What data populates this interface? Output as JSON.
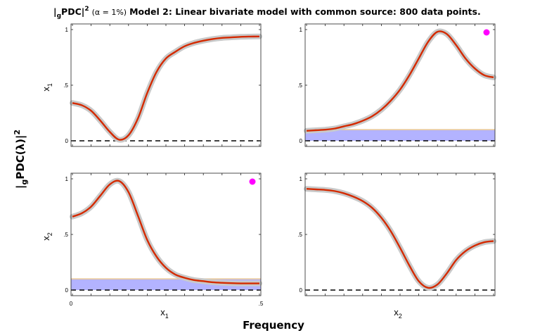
{
  "figure": {
    "title": {
      "prefix": "|",
      "sub": "g",
      "main": "PDC|",
      "sup": "2",
      "alpha": "(α = 1%)",
      "rest": "Model 2: Linear bivariate model with common source: 800 data points."
    },
    "ylabel": {
      "prefix": "|",
      "sub": "g",
      "main": "PDC(λ)|",
      "sup": "2"
    },
    "xlabel": "Frequency",
    "row_labels": [
      {
        "main": "x",
        "sub": "1"
      },
      {
        "main": "x",
        "sub": "2"
      }
    ],
    "col_labels": [
      {
        "main": "x",
        "sub": "1"
      },
      {
        "main": "x",
        "sub": "2"
      }
    ],
    "ytick_labels": [
      "0",
      ".5",
      "1"
    ],
    "xtick_labels": [
      "0",
      ".5"
    ]
  },
  "colors": {
    "estimate": "#d42a00",
    "confidence": "#c9c9c9",
    "threshold_fill": "#b3b3ff",
    "threshold_edge": "#e8c89a",
    "zero_line": "#000000",
    "significance_marker": "#ff00ff"
  },
  "chart_data": [
    {
      "type": "line",
      "row": 1,
      "col": 1,
      "xlim": [
        0,
        0.5
      ],
      "ylim": [
        0,
        1
      ],
      "x": [
        0,
        0.025,
        0.05,
        0.075,
        0.1,
        0.125,
        0.15,
        0.175,
        0.2,
        0.225,
        0.25,
        0.275,
        0.3,
        0.325,
        0.35,
        0.375,
        0.4,
        0.425,
        0.45,
        0.475,
        0.5
      ],
      "series": [
        {
          "values": [
            0.34,
            0.32,
            0.27,
            0.18,
            0.08,
            0.01,
            0.05,
            0.2,
            0.43,
            0.62,
            0.74,
            0.8,
            0.85,
            0.88,
            0.9,
            0.915,
            0.925,
            0.93,
            0.935,
            0.937,
            0.938
          ]
        }
      ],
      "threshold": null,
      "significant": false
    },
    {
      "type": "line",
      "row": 1,
      "col": 2,
      "xlim": [
        0,
        0.5
      ],
      "ylim": [
        0,
        1
      ],
      "x": [
        0,
        0.025,
        0.05,
        0.075,
        0.1,
        0.125,
        0.15,
        0.175,
        0.2,
        0.225,
        0.25,
        0.275,
        0.3,
        0.325,
        0.35,
        0.375,
        0.4,
        0.425,
        0.45,
        0.475,
        0.5
      ],
      "series": [
        {
          "values": [
            0.09,
            0.095,
            0.1,
            0.11,
            0.13,
            0.15,
            0.18,
            0.22,
            0.28,
            0.36,
            0.46,
            0.59,
            0.74,
            0.89,
            0.98,
            0.96,
            0.86,
            0.74,
            0.65,
            0.59,
            0.57
          ]
        }
      ],
      "threshold": 0.1,
      "significant": true
    },
    {
      "type": "line",
      "row": 2,
      "col": 1,
      "xlim": [
        0,
        0.5
      ],
      "ylim": [
        0,
        1
      ],
      "x": [
        0,
        0.025,
        0.05,
        0.075,
        0.1,
        0.125,
        0.15,
        0.175,
        0.2,
        0.225,
        0.25,
        0.275,
        0.3,
        0.325,
        0.35,
        0.375,
        0.4,
        0.425,
        0.45,
        0.475,
        0.5
      ],
      "series": [
        {
          "values": [
            0.66,
            0.69,
            0.75,
            0.85,
            0.95,
            0.98,
            0.88,
            0.67,
            0.45,
            0.3,
            0.2,
            0.14,
            0.11,
            0.09,
            0.08,
            0.07,
            0.065,
            0.062,
            0.06,
            0.06,
            0.06
          ]
        }
      ],
      "threshold": 0.1,
      "significant": true
    },
    {
      "type": "line",
      "row": 2,
      "col": 2,
      "xlim": [
        0,
        0.5
      ],
      "ylim": [
        0,
        1
      ],
      "x": [
        0,
        0.025,
        0.05,
        0.075,
        0.1,
        0.125,
        0.15,
        0.175,
        0.2,
        0.225,
        0.25,
        0.275,
        0.3,
        0.325,
        0.35,
        0.375,
        0.4,
        0.425,
        0.45,
        0.475,
        0.5
      ],
      "series": [
        {
          "values": [
            0.91,
            0.905,
            0.9,
            0.89,
            0.87,
            0.84,
            0.8,
            0.74,
            0.65,
            0.53,
            0.38,
            0.22,
            0.08,
            0.02,
            0.05,
            0.15,
            0.27,
            0.35,
            0.4,
            0.43,
            0.44
          ]
        }
      ],
      "threshold": null,
      "significant": false
    }
  ]
}
